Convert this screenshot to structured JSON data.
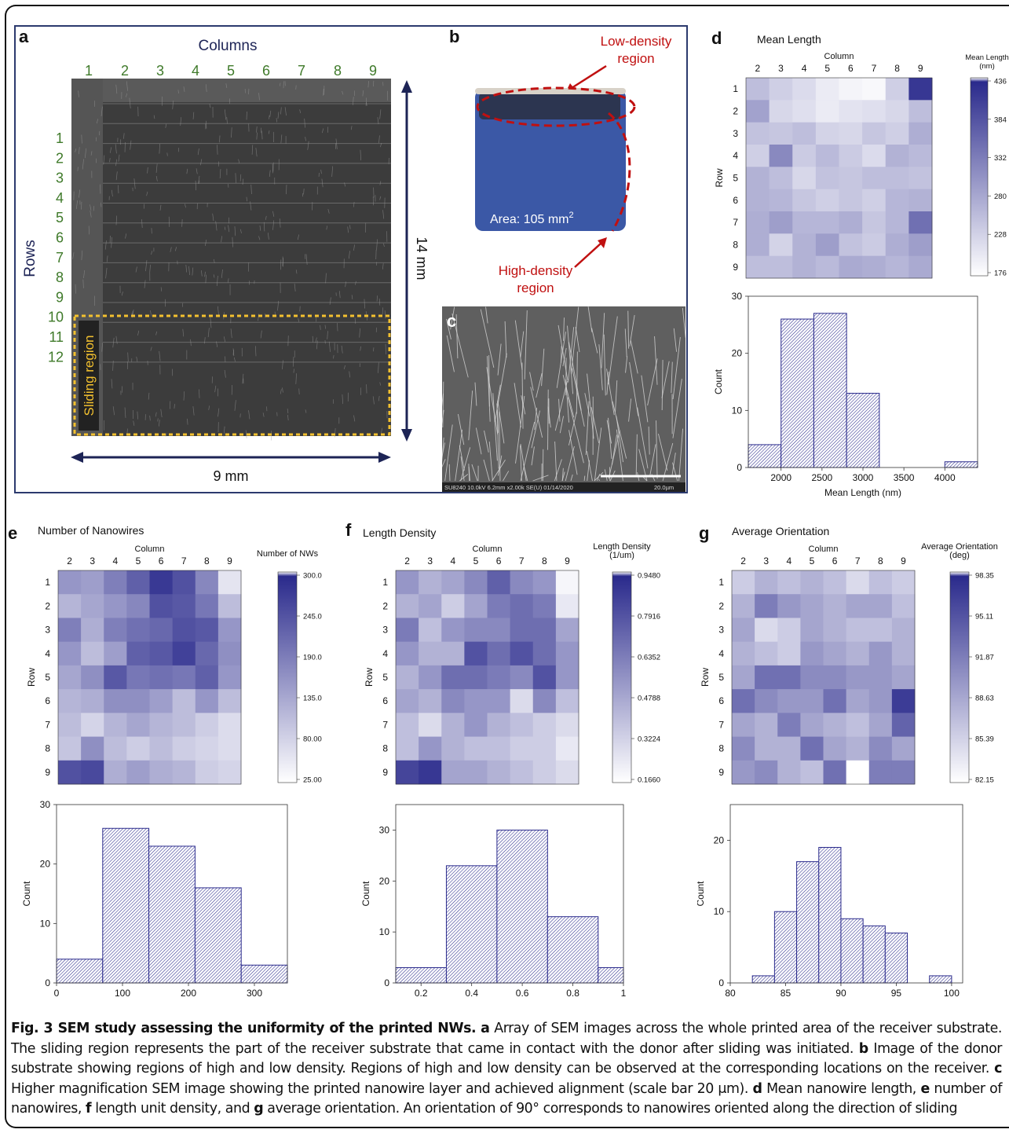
{
  "panel_labels": {
    "a": "a",
    "b": "b",
    "c": "c",
    "d": "d",
    "e": "e",
    "f": "f",
    "g": "g"
  },
  "panel_a": {
    "columns_title": "Columns",
    "column_numbers": [
      "1",
      "2",
      "3",
      "4",
      "5",
      "6",
      "7",
      "8",
      "9"
    ],
    "rows_title": "Rows",
    "row_numbers": [
      "1",
      "2",
      "3",
      "4",
      "5",
      "6",
      "7",
      "8",
      "9",
      "10",
      "11",
      "12"
    ],
    "sliding_label": "Sliding region",
    "height_label": "14 mm",
    "width_label": "9 mm"
  },
  "panel_b": {
    "low_label_1": "Low-density",
    "low_label_2": "region",
    "high_label_1": "High-density",
    "high_label_2": "region",
    "area_text": "Area: 105 mm",
    "area_sup": "2"
  },
  "panel_c": {
    "footer": "SU8240 10.0kV 6.2mm x2.00k SE(U) 01/14/2020",
    "scale_label": "20.0µm"
  },
  "heatmaps": [
    {
      "id": "d",
      "title": "Mean Length",
      "col_title": "Column",
      "row_title": "Row",
      "col_labels": [
        "2",
        "3",
        "4",
        "5",
        "6",
        "7",
        "8",
        "9"
      ],
      "row_labels": [
        "1",
        "2",
        "3",
        "4",
        "5",
        "6",
        "7",
        "8",
        "9"
      ],
      "cb_title": [
        "Mean Length",
        "(nm)"
      ],
      "cb_ticks": [
        "4360",
        "3840",
        "3320",
        "2800",
        "2280",
        "1760"
      ],
      "cb_ticks_visible": [
        "436",
        "384",
        "332",
        "280",
        "228",
        "176"
      ],
      "vmin": 1760,
      "vmax": 4360,
      "values": [
        [
          2550,
          2350,
          2200,
          2000,
          1900,
          1850,
          2350,
          4200
        ],
        [
          2900,
          2250,
          2150,
          2000,
          2100,
          2150,
          2250,
          2550
        ],
        [
          2500,
          2450,
          2550,
          2300,
          2250,
          2450,
          2350,
          2750
        ],
        [
          2350,
          3200,
          2400,
          2600,
          2400,
          2200,
          2700,
          2600
        ],
        [
          2700,
          2550,
          2250,
          2500,
          2450,
          2550,
          2550,
          2500
        ],
        [
          2700,
          2650,
          2450,
          2350,
          2450,
          2350,
          2650,
          2700
        ],
        [
          2750,
          2950,
          2650,
          2650,
          2750,
          2450,
          2650,
          3500
        ],
        [
          2750,
          2300,
          2700,
          2950,
          2500,
          2400,
          2750,
          2950
        ],
        [
          2550,
          2550,
          2700,
          2600,
          2800,
          2750,
          2650,
          2800
        ]
      ],
      "color": [
        42,
        42,
        140
      ]
    },
    {
      "id": "e",
      "title": "Number of Nanowires",
      "col_title": "Column",
      "row_title": "Row",
      "col_labels": [
        "2",
        "3",
        "4",
        "5",
        "6",
        "7",
        "8",
        "9"
      ],
      "row_labels": [
        "1",
        "2",
        "3",
        "4",
        "5",
        "6",
        "7",
        "8",
        "9"
      ],
      "cb_title": [
        "Number of NWs"
      ],
      "cb_ticks": [
        "300.0",
        "245.0",
        "190.0",
        "135.0",
        "80.00",
        "25.00"
      ],
      "vmin": 25,
      "vmax": 300,
      "values": [
        [
          160,
          150,
          190,
          230,
          280,
          250,
          180,
          60
        ],
        [
          120,
          140,
          160,
          180,
          250,
          240,
          200,
          110
        ],
        [
          190,
          130,
          190,
          210,
          220,
          250,
          240,
          160
        ],
        [
          160,
          110,
          150,
          230,
          240,
          270,
          220,
          170
        ],
        [
          140,
          170,
          240,
          200,
          210,
          200,
          230,
          160
        ],
        [
          120,
          130,
          170,
          170,
          150,
          110,
          160,
          110
        ],
        [
          110,
          80,
          120,
          140,
          120,
          110,
          90,
          70
        ],
        [
          100,
          170,
          110,
          90,
          110,
          90,
          80,
          70
        ],
        [
          250,
          260,
          130,
          150,
          130,
          120,
          90,
          80
        ]
      ],
      "color": [
        42,
        42,
        140
      ]
    },
    {
      "id": "f",
      "title": "Length Density",
      "col_title": "Column",
      "row_title": "Row",
      "col_labels": [
        "2",
        "3",
        "4",
        "5",
        "6",
        "7",
        "8",
        "9"
      ],
      "row_labels": [
        "1",
        "2",
        "3",
        "4",
        "5",
        "6",
        "7",
        "8",
        "9"
      ],
      "cb_title": [
        "Length Density",
        "(1/um)"
      ],
      "cb_ticks": [
        "0.9480",
        "0.7916",
        "0.6352",
        "0.4788",
        "0.3224",
        "0.1660"
      ],
      "vmin": 0.166,
      "vmax": 0.948,
      "values": [
        [
          0.55,
          0.45,
          0.5,
          0.6,
          0.75,
          0.6,
          0.55,
          0.2
        ],
        [
          0.45,
          0.5,
          0.35,
          0.5,
          0.65,
          0.7,
          0.65,
          0.25
        ],
        [
          0.65,
          0.4,
          0.55,
          0.6,
          0.6,
          0.7,
          0.7,
          0.5
        ],
        [
          0.55,
          0.45,
          0.45,
          0.8,
          0.7,
          0.8,
          0.7,
          0.55
        ],
        [
          0.45,
          0.55,
          0.7,
          0.7,
          0.65,
          0.6,
          0.8,
          0.55
        ],
        [
          0.5,
          0.45,
          0.6,
          0.55,
          0.55,
          0.3,
          0.6,
          0.4
        ],
        [
          0.4,
          0.3,
          0.45,
          0.55,
          0.45,
          0.4,
          0.35,
          0.3
        ],
        [
          0.4,
          0.55,
          0.45,
          0.4,
          0.4,
          0.35,
          0.35,
          0.25
        ],
        [
          0.85,
          0.9,
          0.5,
          0.5,
          0.45,
          0.4,
          0.35,
          0.3
        ]
      ],
      "color": [
        42,
        42,
        140
      ]
    },
    {
      "id": "g",
      "title": "Average Orientation",
      "col_title": "Column",
      "row_title": "Row",
      "col_labels": [
        "2",
        "3",
        "4",
        "5",
        "6",
        "7",
        "8",
        "9"
      ],
      "row_labels": [
        "1",
        "2",
        "3",
        "4",
        "5",
        "6",
        "7",
        "8",
        "9"
      ],
      "cb_title": [
        "Average Orientation",
        "(deg)"
      ],
      "cb_ticks": [
        "98.35",
        "95.11",
        "91.87",
        "88.63",
        "85.39",
        "82.15"
      ],
      "vmin": 82.15,
      "vmax": 98.35,
      "values": [
        [
          86,
          88,
          87,
          88,
          87,
          85,
          87,
          86
        ],
        [
          88,
          92,
          90,
          89,
          88,
          89,
          89,
          87
        ],
        [
          89,
          85,
          86,
          89,
          88,
          87,
          87,
          88
        ],
        [
          88,
          87,
          86,
          90,
          89,
          88,
          90,
          88
        ],
        [
          89,
          93,
          93,
          91,
          91,
          90,
          90,
          89
        ],
        [
          93,
          91,
          90,
          90,
          93,
          89,
          90,
          97
        ],
        [
          89,
          88,
          92,
          89,
          88,
          87,
          89,
          94
        ],
        [
          91,
          88,
          88,
          93,
          89,
          88,
          91,
          89
        ],
        [
          90,
          91,
          88,
          87,
          93,
          82,
          92,
          92
        ]
      ],
      "color": [
        42,
        42,
        140
      ]
    }
  ],
  "chart_data": [
    {
      "type": "bar",
      "panel": "d",
      "bin_edges": [
        1600,
        2000,
        2400,
        2800,
        3200,
        3600,
        4000,
        4400
      ],
      "values": [
        4,
        26,
        27,
        13,
        0,
        0,
        1,
        1
      ],
      "xlabel": "Mean Length (nm)",
      "ylabel": "Count",
      "xlim": [
        1600,
        4400
      ],
      "ylim": [
        0,
        30
      ],
      "xticks": [
        2000,
        2500,
        3000,
        3500,
        4000
      ],
      "yticks": [
        0,
        10,
        20,
        30
      ]
    },
    {
      "type": "bar",
      "panel": "e",
      "bin_edges": [
        0,
        70,
        140,
        210,
        280,
        350
      ],
      "values": [
        4,
        26,
        23,
        16,
        3
      ],
      "xlabel": "Number of NWs",
      "ylabel": "Count",
      "xlim": [
        0,
        350
      ],
      "ylim": [
        0,
        30
      ],
      "xticks": [
        0,
        100,
        200,
        300
      ],
      "yticks": [
        0,
        10,
        20,
        30
      ]
    },
    {
      "type": "bar",
      "panel": "f",
      "bin_edges": [
        0.1,
        0.3,
        0.5,
        0.7,
        0.9,
        1.0
      ],
      "values": [
        3,
        23,
        30,
        13,
        3
      ],
      "xlabel": "Length Density (1/um)",
      "ylabel": "Count",
      "xlim": [
        0.1,
        1.0
      ],
      "ylim": [
        0,
        35
      ],
      "xticks": [
        0.2,
        0.4,
        0.6,
        0.8,
        1.0
      ],
      "yticks": [
        0,
        10,
        20,
        30
      ]
    },
    {
      "type": "bar",
      "panel": "g",
      "bin_edges": [
        82,
        84,
        86,
        88,
        90,
        92,
        94,
        96,
        98,
        100
      ],
      "values": [
        1,
        10,
        17,
        19,
        9,
        8,
        7,
        0,
        1
      ],
      "xlabel": "Average Orientation (deg)",
      "ylabel": "Count",
      "xlim": [
        80,
        101
      ],
      "ylim": [
        0,
        25
      ],
      "xticks": [
        80,
        85,
        90,
        95,
        100
      ],
      "yticks": [
        0,
        10,
        20
      ]
    }
  ],
  "caption": {
    "fig_label": "Fig. 3 SEM study assessing the uniformity of the printed NWs.",
    "a_label": "a",
    "a_text": " Array of SEM images across the whole printed area of the receiver substrate. The sliding region represents the part of the receiver substrate that came in contact with the donor after sliding was initiated. ",
    "b_label": "b",
    "b_text": " Image of the donor substrate showing regions of high and low density. Regions of high and low density can be observed at the corresponding locations on the receiver. ",
    "c_label": "c",
    "c_text": " Higher magnification SEM image showing the printed nanowire layer and achieved alignment (scale bar 20 μm). ",
    "d_label": "d",
    "d_text": " Mean nanowire length, ",
    "e_label": "e",
    "e_text": " number of nanowires, ",
    "f_label": "f",
    "f_text": " length unit density, and ",
    "g_label": "g",
    "g_text": " average orientation. An orientation of 90° corresponds to nanowires oriented along the direction of sliding"
  }
}
